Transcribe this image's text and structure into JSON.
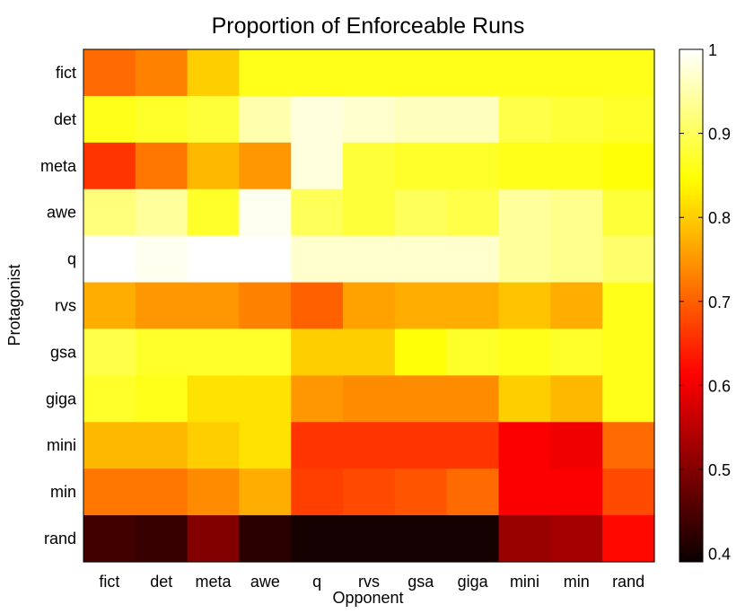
{
  "chart_data": {
    "type": "heatmap",
    "title": "Proportion of Enforceable Runs",
    "xlabel": "Opponent",
    "ylabel": "Protagonist",
    "x_categories": [
      "fict",
      "det",
      "meta",
      "awe",
      "q",
      "rvs",
      "gsa",
      "giga",
      "mini",
      "min",
      "rand"
    ],
    "y_categories": [
      "fict",
      "det",
      "meta",
      "awe",
      "q",
      "rvs",
      "gsa",
      "giga",
      "mini",
      "min",
      "rand"
    ],
    "colormap": "hot",
    "colorbar": {
      "min": 0.39,
      "max": 1.0,
      "ticks": [
        0.4,
        0.5,
        0.6,
        0.7,
        0.8,
        0.9,
        1
      ]
    },
    "values": [
      [
        0.71,
        0.73,
        0.8,
        0.86,
        0.86,
        0.86,
        0.86,
        0.86,
        0.86,
        0.86,
        0.86
      ],
      [
        0.86,
        0.87,
        0.88,
        0.95,
        0.98,
        0.97,
        0.96,
        0.96,
        0.89,
        0.88,
        0.87
      ],
      [
        0.66,
        0.72,
        0.78,
        0.75,
        0.98,
        0.88,
        0.87,
        0.87,
        0.86,
        0.86,
        0.85
      ],
      [
        0.92,
        0.94,
        0.87,
        0.99,
        0.9,
        0.88,
        0.9,
        0.89,
        0.94,
        0.93,
        0.88
      ],
      [
        1.0,
        0.99,
        1.0,
        1.0,
        0.97,
        0.97,
        0.97,
        0.97,
        0.94,
        0.93,
        0.91
      ],
      [
        0.77,
        0.75,
        0.75,
        0.73,
        0.7,
        0.76,
        0.77,
        0.77,
        0.79,
        0.77,
        0.86
      ],
      [
        0.89,
        0.87,
        0.87,
        0.87,
        0.8,
        0.8,
        0.85,
        0.87,
        0.86,
        0.87,
        0.86
      ],
      [
        0.87,
        0.86,
        0.82,
        0.82,
        0.75,
        0.74,
        0.74,
        0.74,
        0.8,
        0.78,
        0.86
      ],
      [
        0.78,
        0.78,
        0.8,
        0.82,
        0.66,
        0.66,
        0.66,
        0.66,
        0.61,
        0.6,
        0.71
      ],
      [
        0.72,
        0.72,
        0.74,
        0.77,
        0.67,
        0.68,
        0.69,
        0.71,
        0.61,
        0.61,
        0.68
      ],
      [
        0.44,
        0.43,
        0.5,
        0.42,
        0.4,
        0.4,
        0.4,
        0.4,
        0.52,
        0.53,
        0.62
      ]
    ]
  }
}
